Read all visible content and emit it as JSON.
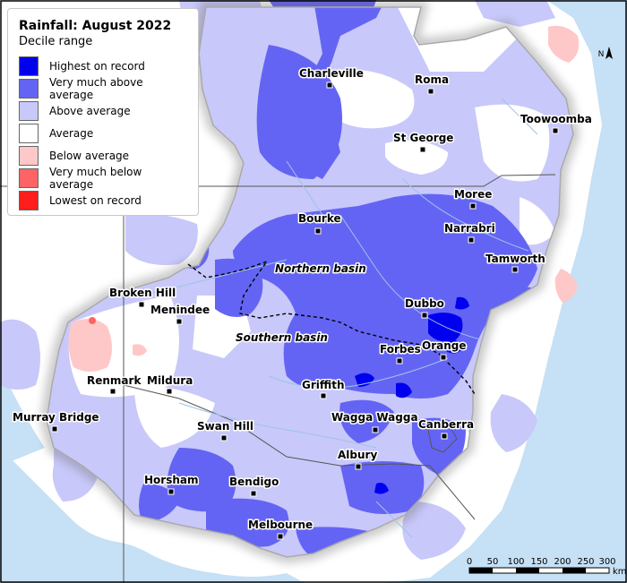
{
  "legend": {
    "title": "Rainfall: August 2022",
    "subtitle": "Decile range",
    "items": [
      {
        "label": "Highest on record",
        "color": "#0000ee"
      },
      {
        "label": "Very much above average",
        "color": "#6464f4"
      },
      {
        "label": "Above average",
        "color": "#c8c8fa"
      },
      {
        "label": "Average",
        "color": "#ffffff"
      },
      {
        "label": "Below average",
        "color": "#ffc8c8"
      },
      {
        "label": "Very much below average",
        "color": "#ff6464"
      },
      {
        "label": "Lowest on record",
        "color": "#ff1e1e"
      }
    ]
  },
  "towns": [
    {
      "name": "Charleville"
    },
    {
      "name": "Roma"
    },
    {
      "name": "Toowoomba"
    },
    {
      "name": "St George"
    },
    {
      "name": "Moree"
    },
    {
      "name": "Narrabri"
    },
    {
      "name": "Bourke"
    },
    {
      "name": "Tamworth"
    },
    {
      "name": "Broken Hill"
    },
    {
      "name": "Menindee"
    },
    {
      "name": "Dubbo"
    },
    {
      "name": "Forbes"
    },
    {
      "name": "Orange"
    },
    {
      "name": "Renmark"
    },
    {
      "name": "Mildura"
    },
    {
      "name": "Griffith"
    },
    {
      "name": "Murray Bridge"
    },
    {
      "name": "Swan Hill"
    },
    {
      "name": "Wagga Wagga"
    },
    {
      "name": "Canberra"
    },
    {
      "name": "Albury"
    },
    {
      "name": "Horsham"
    },
    {
      "name": "Bendigo"
    },
    {
      "name": "Melbourne"
    }
  ],
  "basins": {
    "northern": "Northern basin",
    "southern": "Southern basin"
  },
  "scale_bar": {
    "ticks": [
      "0",
      "50",
      "100",
      "150",
      "200",
      "250",
      "300"
    ],
    "unit": "km"
  },
  "north_arrow": {
    "label": "N"
  },
  "colors": {
    "ocean": "#c6e0f5",
    "land_outside": "#ffffff",
    "highest": "#0000ee",
    "very_much_above": "#6464f4",
    "above": "#c8c8fa",
    "below": "#ffc8c8",
    "very_much_below": "#ff6464",
    "river": "#9ec4e4"
  }
}
